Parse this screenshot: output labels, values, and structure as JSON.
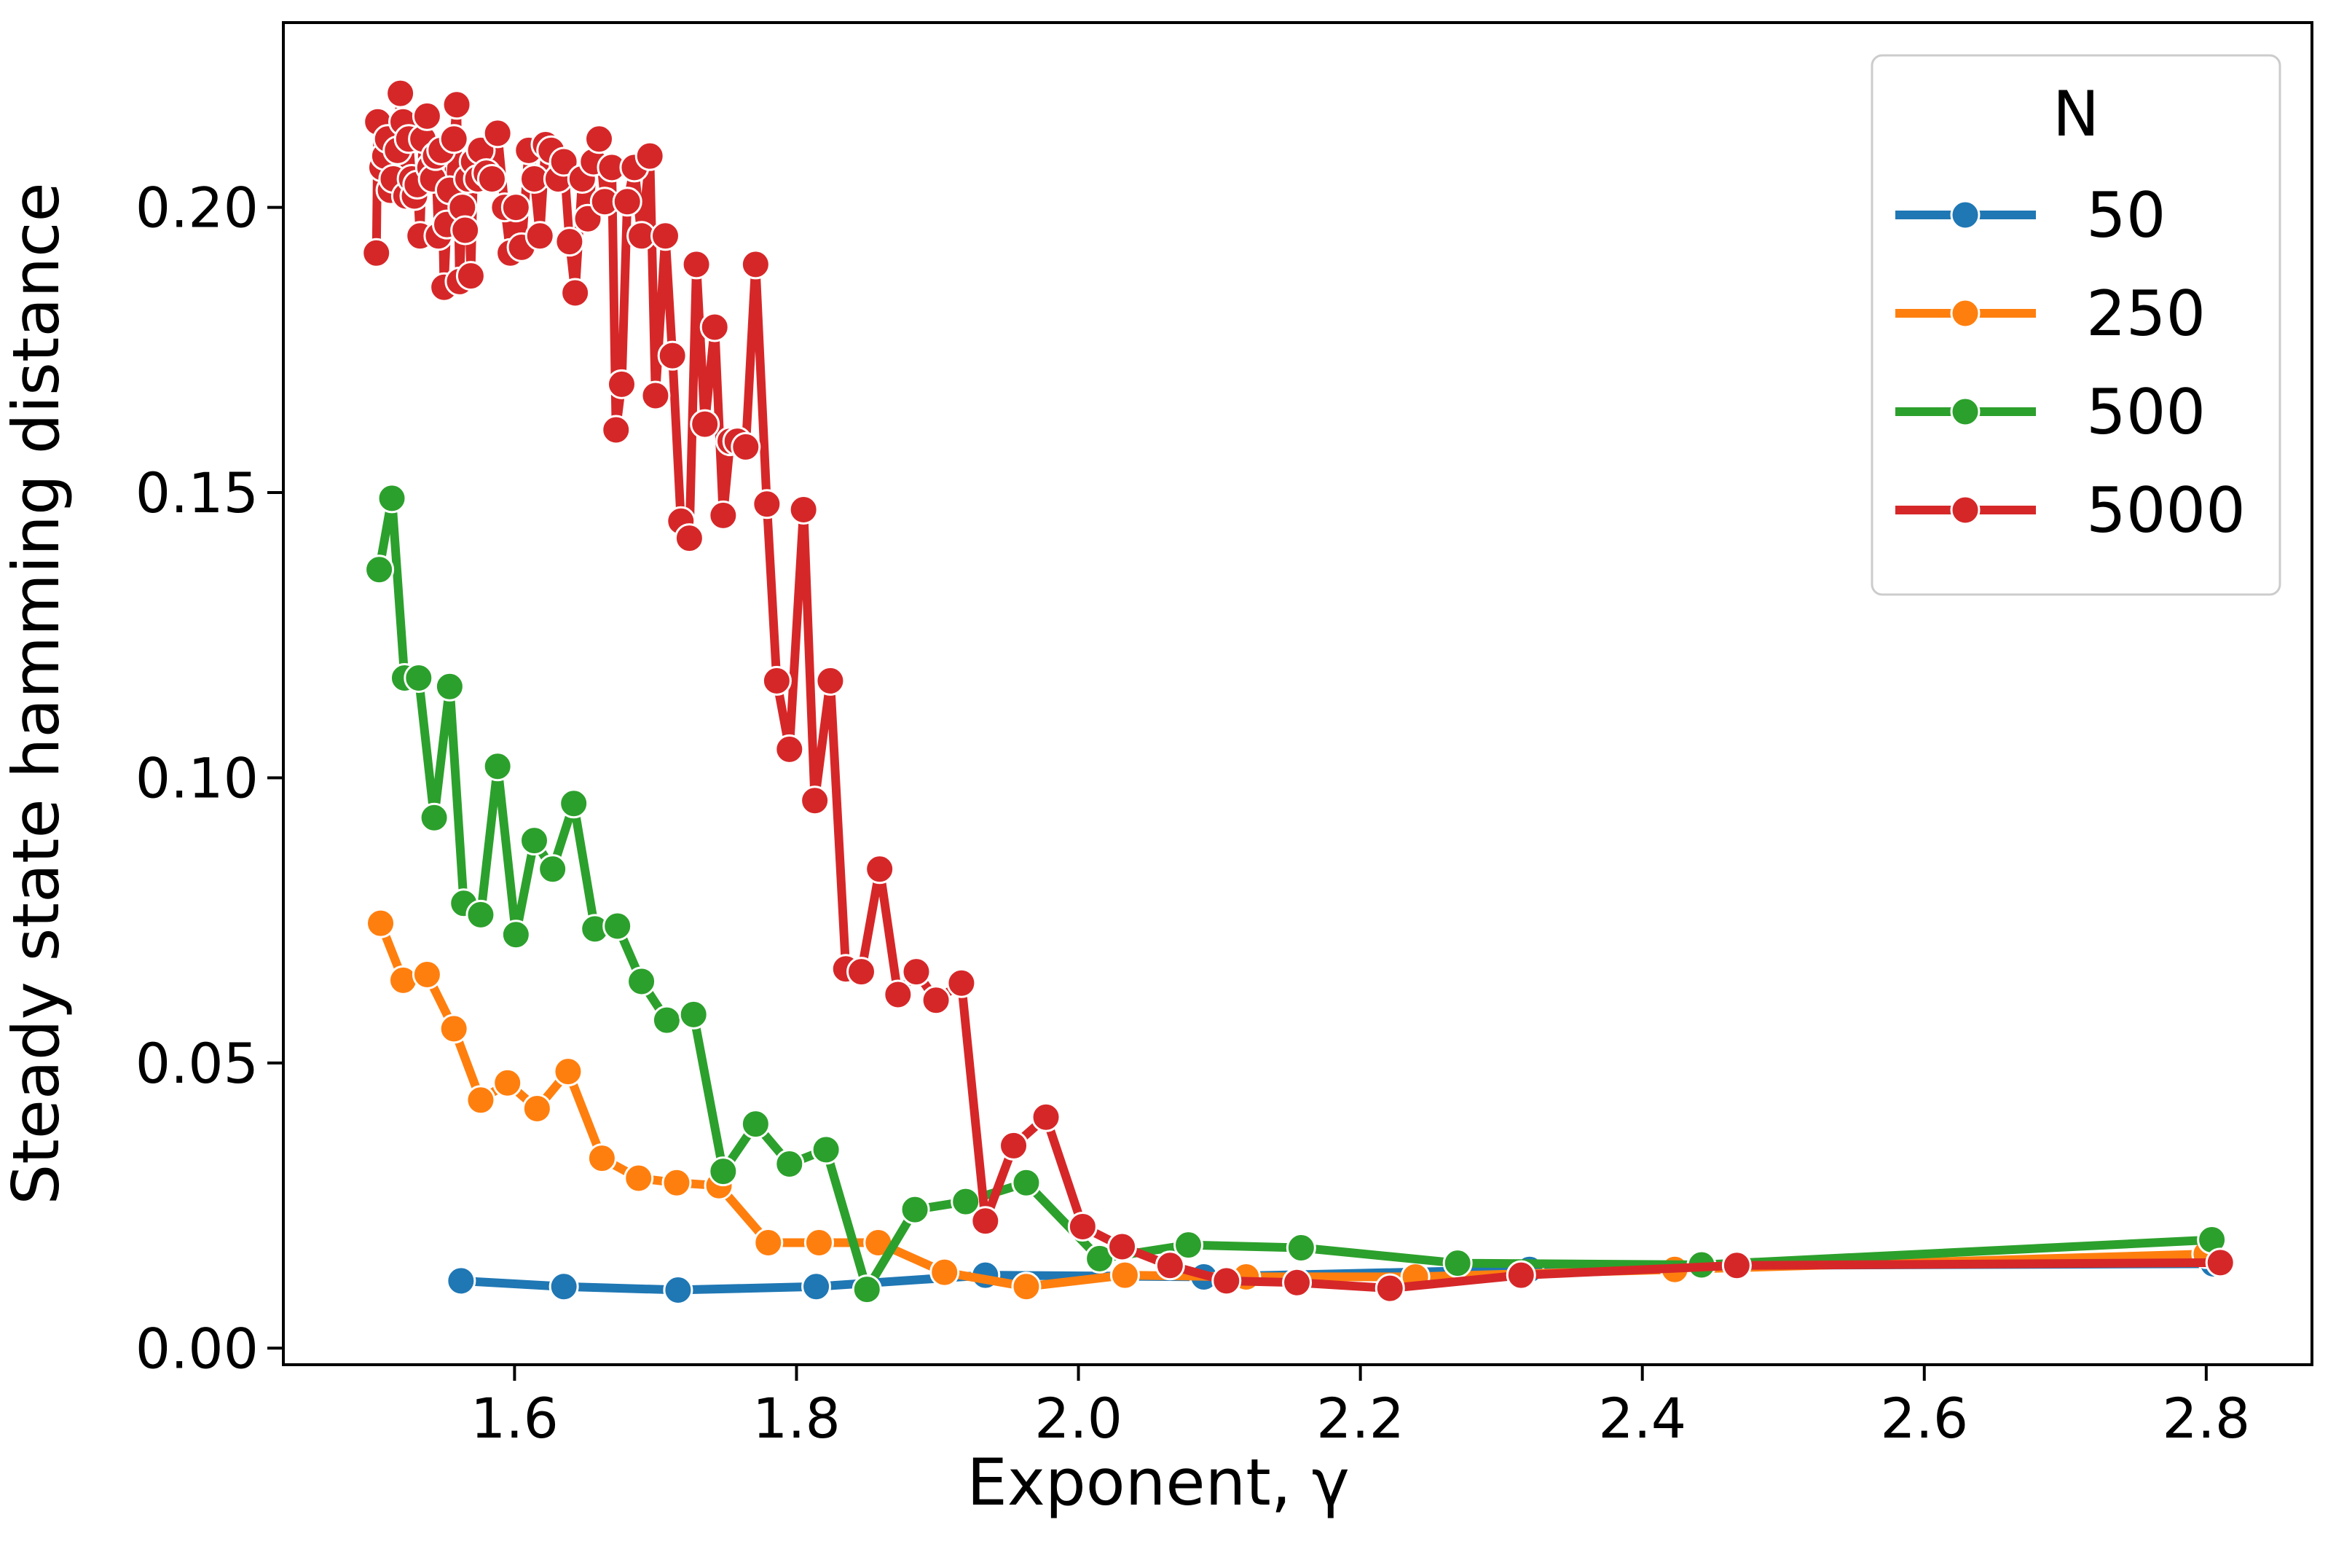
{
  "chart_data": {
    "type": "line",
    "xlabel": "Exponent, γ",
    "ylabel": "Steady state hamming distance",
    "legend_title": "N",
    "legend": "upper right",
    "grid": false,
    "xlim": [
      1.436,
      2.875
    ],
    "ylim": [
      -0.0029,
      0.2324
    ],
    "xticks": [
      1.6,
      1.8,
      {
        "value": 2,
        "label": "2.0"
      },
      2.2,
      2.4,
      2.6,
      2.8
    ],
    "yticks": [
      {
        "value": 0,
        "label": "0.00"
      },
      {
        "value": 0.05,
        "label": "0.05"
      },
      {
        "value": 0.1,
        "label": "0.10"
      },
      {
        "value": 0.15,
        "label": "0.15"
      },
      {
        "value": 0.2,
        "label": "0.20"
      }
    ],
    "series": [
      {
        "name": "50",
        "color": "#1f77b4",
        "x": [
          1.562,
          1.635,
          1.716,
          1.814,
          1.934,
          2.089,
          2.32,
          2.442,
          2.805
        ],
        "values": [
          0.0118,
          0.0108,
          0.0102,
          0.0108,
          0.0128,
          0.0125,
          0.0138,
          0.0145,
          0.0148
        ]
      },
      {
        "name": "250",
        "color": "#ff7f0e",
        "x": [
          1.505,
          1.521,
          1.538,
          1.557,
          1.576,
          1.595,
          1.616,
          1.638,
          1.662,
          1.688,
          1.715,
          1.745,
          1.78,
          1.816,
          1.858,
          1.905,
          1.963,
          2.033,
          2.119,
          2.239,
          2.423,
          2.8
        ],
        "values": [
          0.0745,
          0.0645,
          0.0655,
          0.056,
          0.0435,
          0.0465,
          0.042,
          0.0485,
          0.0333,
          0.0298,
          0.029,
          0.0285,
          0.0185,
          0.0185,
          0.0185,
          0.0133,
          0.0108,
          0.0128,
          0.0125,
          0.0125,
          0.0138,
          0.0165
        ]
      },
      {
        "name": "500",
        "color": "#2ca02c",
        "x": [
          1.504,
          1.513,
          1.522,
          1.532,
          1.543,
          1.554,
          1.564,
          1.576,
          1.588,
          1.601,
          1.614,
          1.627,
          1.642,
          1.657,
          1.673,
          1.69,
          1.708,
          1.727,
          1.748,
          1.771,
          1.795,
          1.821,
          1.85,
          1.884,
          1.92,
          1.963,
          2.015,
          2.078,
          2.158,
          2.269,
          2.442,
          2.804
        ],
        "values": [
          0.1365,
          0.149,
          0.1175,
          0.1175,
          0.093,
          0.116,
          0.078,
          0.076,
          0.102,
          0.0725,
          0.089,
          0.084,
          0.0955,
          0.0735,
          0.074,
          0.0643,
          0.0575,
          0.0585,
          0.031,
          0.0393,
          0.0323,
          0.0348,
          0.0103,
          0.0243,
          0.0257,
          0.029,
          0.0157,
          0.0181,
          0.0176,
          0.0149,
          0.0146,
          0.019
        ]
      },
      {
        "name": "5000",
        "color": "#d62728",
        "x": [
          1.502,
          1.503,
          1.506,
          1.508,
          1.51,
          1.512,
          1.514,
          1.517,
          1.519,
          1.521,
          1.523,
          1.525,
          1.527,
          1.529,
          1.531,
          1.533,
          1.535,
          1.538,
          1.54,
          1.542,
          1.544,
          1.546,
          1.548,
          1.55,
          1.552,
          1.554,
          1.557,
          1.559,
          1.561,
          1.563,
          1.565,
          1.567,
          1.569,
          1.571,
          1.574,
          1.576,
          1.58,
          1.584,
          1.588,
          1.593,
          1.597,
          1.601,
          1.605,
          1.61,
          1.614,
          1.618,
          1.622,
          1.626,
          1.631,
          1.635,
          1.639,
          1.643,
          1.648,
          1.652,
          1.656,
          1.66,
          1.664,
          1.669,
          1.672,
          1.676,
          1.68,
          1.685,
          1.69,
          1.696,
          1.7,
          1.707,
          1.712,
          1.718,
          1.724,
          1.729,
          1.735,
          1.742,
          1.748,
          1.753,
          1.758,
          1.764,
          1.771,
          1.779,
          1.786,
          1.795,
          1.805,
          1.813,
          1.824,
          1.835,
          1.846,
          1.859,
          1.872,
          1.885,
          1.899,
          1.917,
          1.934,
          1.954,
          1.977,
          2.003,
          2.031,
          2.065,
          2.105,
          2.155,
          2.221,
          2.314,
          2.467,
          2.81
        ],
        "values": [
          0.192,
          0.215,
          0.207,
          0.209,
          0.212,
          0.203,
          0.205,
          0.21,
          0.22,
          0.215,
          0.202,
          0.212,
          0.205,
          0.202,
          0.204,
          0.195,
          0.212,
          0.216,
          0.207,
          0.205,
          0.209,
          0.195,
          0.21,
          0.186,
          0.197,
          0.203,
          0.212,
          0.218,
          0.187,
          0.2,
          0.196,
          0.205,
          0.188,
          0.208,
          0.205,
          0.21,
          0.206,
          0.205,
          0.213,
          0.2,
          0.192,
          0.2,
          0.193,
          0.21,
          0.205,
          0.195,
          0.211,
          0.21,
          0.205,
          0.208,
          0.194,
          0.185,
          0.205,
          0.198,
          0.208,
          0.212,
          0.201,
          0.207,
          0.161,
          0.169,
          0.201,
          0.207,
          0.195,
          0.209,
          0.167,
          0.195,
          0.174,
          0.145,
          0.142,
          0.19,
          0.162,
          0.179,
          0.146,
          0.159,
          0.159,
          0.158,
          0.19,
          0.148,
          0.117,
          0.105,
          0.147,
          0.096,
          0.117,
          0.0665,
          0.066,
          0.084,
          0.062,
          0.066,
          0.061,
          0.064,
          0.0223,
          0.0355,
          0.0405,
          0.0213,
          0.0178,
          0.0145,
          0.0118,
          0.0115,
          0.0105,
          0.0128,
          0.0145,
          0.015
        ]
      }
    ]
  }
}
